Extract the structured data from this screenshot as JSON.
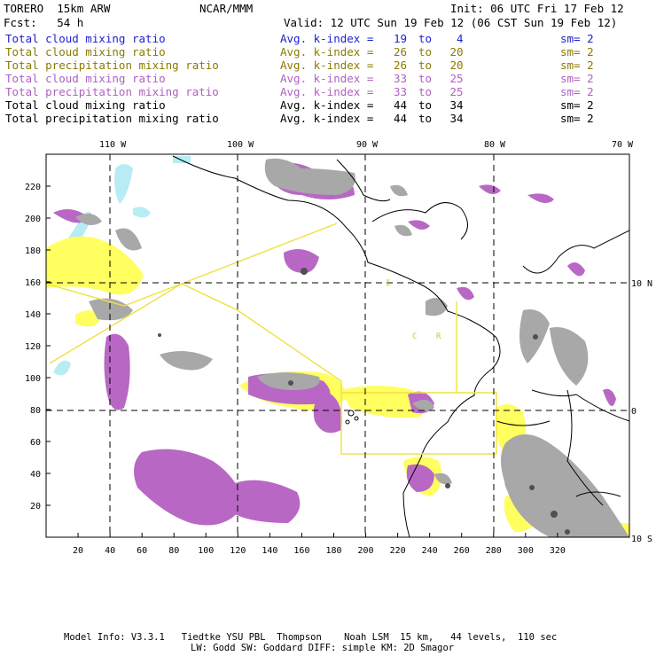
{
  "header": {
    "model": "TORERO  15km ARW",
    "org": "NCAR/MMM",
    "init": "Init: 06 UTC Fri 17 Feb 12",
    "fcst": "Fcst:   54 h",
    "valid": "Valid: 12 UTC Sun 19 Feb 12 (06 CST Sun 19 Feb 12)"
  },
  "legend": [
    {
      "field": "Total cloud mixing ratio",
      "k1": "19",
      "k2": "4",
      "sm": "sm= 2",
      "color": "#2020d0"
    },
    {
      "field": "Total cloud mixing ratio",
      "k1": "26",
      "k2": "20",
      "sm": "sm= 2",
      "color": "#8a7a00"
    },
    {
      "field": "Total precipitation mixing ratio",
      "k1": "26",
      "k2": "20",
      "sm": "sm= 2",
      "color": "#8a7a00"
    },
    {
      "field": "Total cloud mixing ratio",
      "k1": "33",
      "k2": "25",
      "sm": "sm= 2",
      "color": "#b060c0"
    },
    {
      "field": "Total precipitation mixing ratio",
      "k1": "33",
      "k2": "25",
      "sm": "sm= 2",
      "color": "#b060c0"
    },
    {
      "field": "Total cloud mixing ratio",
      "k1": "44",
      "k2": "34",
      "sm": "sm= 2",
      "color": "#000000"
    },
    {
      "field": "Total precipitation mixing ratio",
      "k1": "44",
      "k2": "34",
      "sm": "sm= 2",
      "color": "#000000"
    }
  ],
  "legend_labels": {
    "avg": "Avg. k-index =",
    "to": "to"
  },
  "lon_labels": [
    "110 W",
    "100 W",
    "90 W",
    "80 W",
    "70 W"
  ],
  "lat_labels": [
    "10 N",
    "0",
    "10 S"
  ],
  "x_ticks": [
    "20",
    "40",
    "60",
    "80",
    "100",
    "120",
    "140",
    "160",
    "180",
    "200",
    "220",
    "240",
    "260",
    "280",
    "300",
    "320"
  ],
  "y_ticks": [
    "220",
    "200",
    "180",
    "160",
    "140",
    "120",
    "100",
    "80",
    "60",
    "40",
    "20"
  ],
  "map_labels": {
    "c": "C",
    "r": "R",
    "i": "I"
  },
  "footer": {
    "line1": "Model Info: V3.3.1   Tiedtke YSU PBL  Thompson    Noah LSM  15 km,   44 levels,  110 sec",
    "line2": "LW: Godd SW: Goddard DIFF: simple KM: 2D Smagor"
  },
  "colors": {
    "cloud_light": "#b7ecf5",
    "yellow": "#ffff60",
    "purple": "#b868c4",
    "gray": "#a8a8a8",
    "dark": "#505050",
    "track": "#f0e040"
  }
}
